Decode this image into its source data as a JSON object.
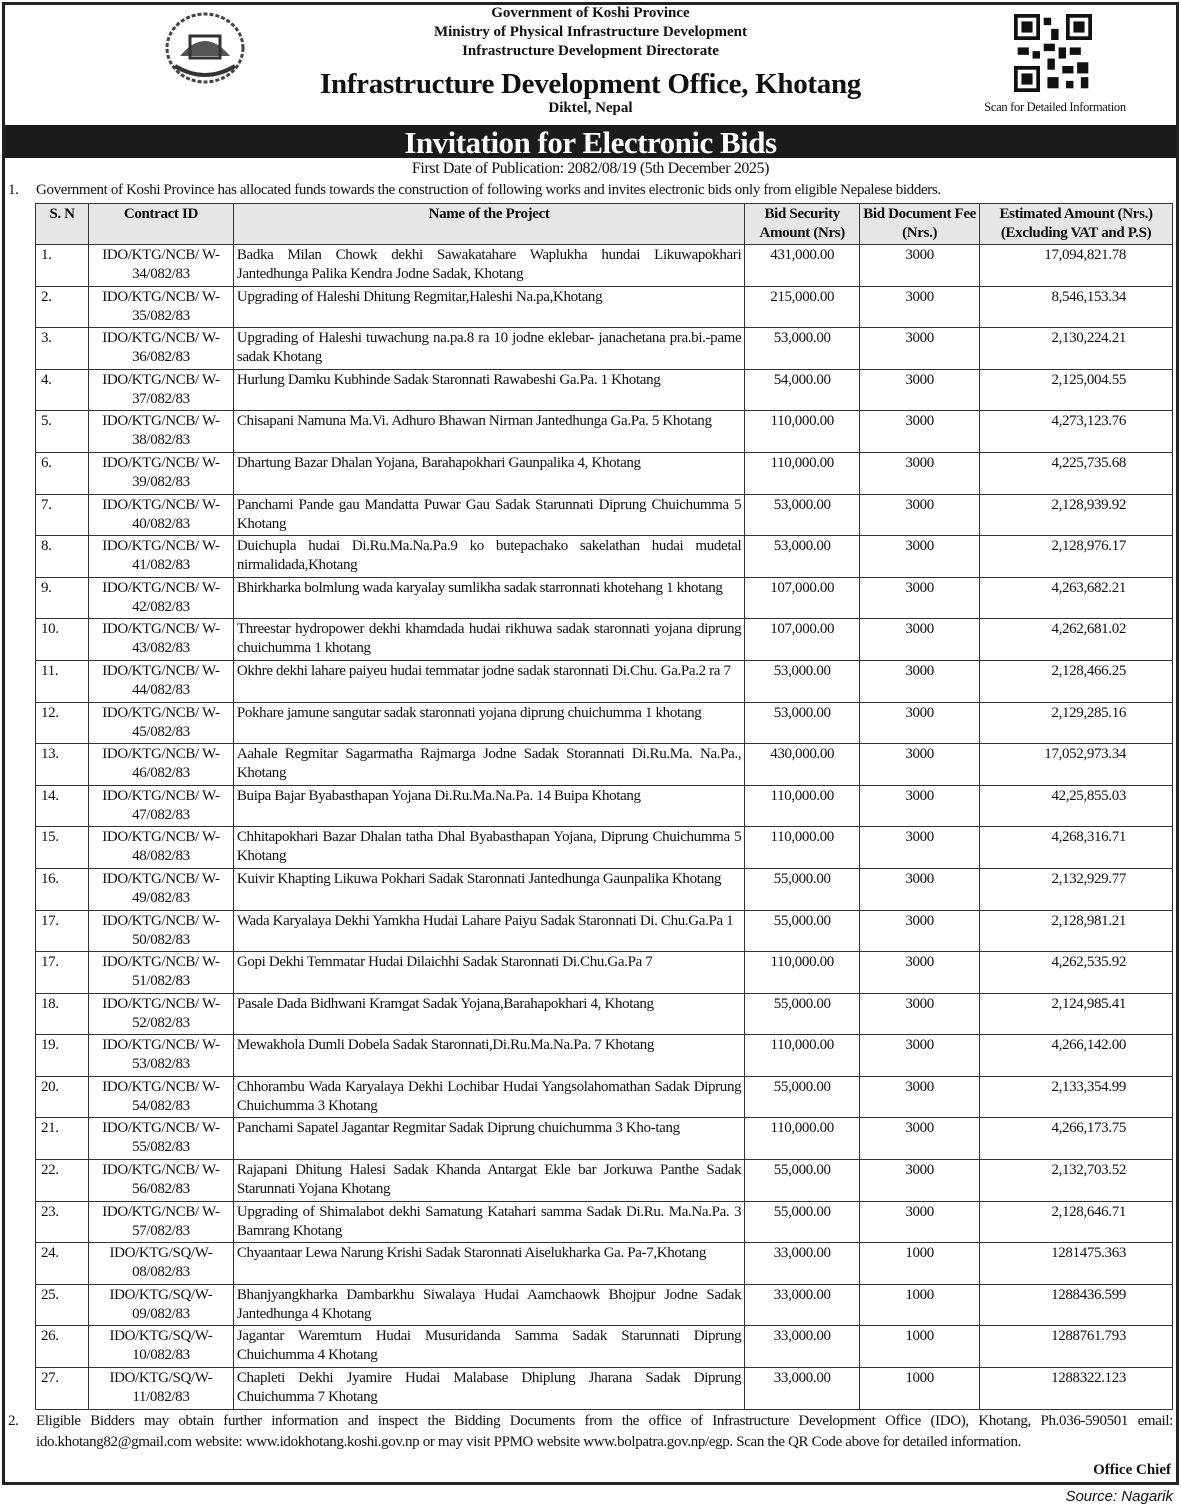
{
  "header": {
    "line1": "Government of Koshi Province",
    "line2": "Ministry of Physical Infrastructure Development",
    "line3": "Infrastructure Development Directorate",
    "office": "Infrastructure Development Office, Khotang",
    "location": "Diktel, Nepal",
    "qr_caption": "Scan for Detailed Information"
  },
  "title": "Invitation for Electronic Bids",
  "publication": "First Date of Publication: 2082/08/19 (5th December 2025)",
  "para1": {
    "num": "1.",
    "text": "Government of Koshi Province has allocated funds towards the construction of following works and invites electronic bids only from eligible Nepalese bidders."
  },
  "table": {
    "columns": [
      "S. N",
      "Contract ID",
      "Name of the Project",
      "Bid Security Amount (Nrs)",
      "Bid Document Fee (Nrs.)",
      "Estimated Amount (Nrs.) (Excluding VAT and P.S)"
    ],
    "rows": [
      [
        "1.",
        "IDO/KTG/NCB/ W-34/082/83",
        "Badka Milan Chowk dekhi Sawakatahare Waplukha hundai Likuwapokhari Jantedhunga Palika Kendra Jodne Sadak, Khotang",
        "431,000.00",
        "3000",
        "17,094,821.78"
      ],
      [
        "2.",
        "IDO/KTG/NCB/ W-35/082/83",
        "Upgrading of Haleshi Dhitung Regmitar,Haleshi Na.pa,Khotang",
        "215,000.00",
        "3000",
        "8,546,153.34"
      ],
      [
        "3.",
        "IDO/KTG/NCB/ W-36/082/83",
        "Upgrading of Haleshi tuwachung na.pa.8 ra 10 jodne eklebar- janachetana pra.bi.-pame sadak Khotang",
        "53,000.00",
        "3000",
        "2,130,224.21"
      ],
      [
        "4.",
        "IDO/KTG/NCB/ W-37/082/83",
        "Hurlung Damku Kubhinde Sadak Staronnati Rawabeshi Ga.Pa. 1 Khotang",
        "54,000.00",
        "3000",
        "2,125,004.55"
      ],
      [
        "5.",
        "IDO/KTG/NCB/ W-38/082/83",
        "Chisapani Namuna Ma.Vi. Adhuro Bhawan Nirman Jantedhunga Ga.Pa. 5 Khotang",
        "110,000.00",
        "3000",
        "4,273,123.76"
      ],
      [
        "6.",
        "IDO/KTG/NCB/ W-39/082/83",
        "Dhartung Bazar Dhalan Yojana, Barahapokhari Gaunpalika 4, Khotang",
        "110,000.00",
        "3000",
        "4,225,735.68"
      ],
      [
        "7.",
        "IDO/KTG/NCB/ W-40/082/83",
        "Panchami Pande gau Mandatta Puwar Gau Sadak Starunnati Diprung Chuichumma 5 Khotang",
        "53,000.00",
        "3000",
        "2,128,939.92"
      ],
      [
        "8.",
        "IDO/KTG/NCB/ W-41/082/83",
        "Duichupla hudai Di.Ru.Ma.Na.Pa.9 ko butepachako sakelathan hudai mudetal nirmalidada,Khotang",
        "53,000.00",
        "3000",
        "2,128,976.17"
      ],
      [
        "9.",
        "IDO/KTG/NCB/ W-42/082/83",
        "Bhirkharka bolmlung wada karyalay sumlikha sadak starronnati khotehang 1 khotang",
        "107,000.00",
        "3000",
        "4,263,682.21"
      ],
      [
        "10.",
        "IDO/KTG/NCB/ W-43/082/83",
        "Threestar hydropower dekhi khamdada hudai rikhuwa sadak staronnati yojana diprung chuichumma 1 khotang",
        "107,000.00",
        "3000",
        "4,262,681.02"
      ],
      [
        "11.",
        "IDO/KTG/NCB/ W-44/082/83",
        "Okhre dekhi lahare paiyeu hudai temmatar jodne sadak staronnati Di.Chu. Ga.Pa.2 ra 7",
        "53,000.00",
        "3000",
        "2,128,466.25"
      ],
      [
        "12.",
        "IDO/KTG/NCB/ W-45/082/83",
        "Pokhare jamune sangutar sadak staronnati yojana diprung chuichumma 1 khotang",
        "53,000.00",
        "3000",
        "2,129,285.16"
      ],
      [
        "13.",
        "IDO/KTG/NCB/ W-46/082/83",
        "Aahale Regmitar Sagarmatha Rajmarga Jodne Sadak Storannati Di.Ru.Ma. Na.Pa., Khotang",
        "430,000.00",
        "3000",
        "17,052,973.34"
      ],
      [
        "14.",
        "IDO/KTG/NCB/ W-47/082/83",
        "Buipa Bajar Byabasthapan Yojana Di.Ru.Ma.Na.Pa. 14 Buipa Khotang",
        "110,000.00",
        "3000",
        "42,25,855.03"
      ],
      [
        "15.",
        "IDO/KTG/NCB/ W-48/082/83",
        "Chhitapokhari Bazar Dhalan tatha Dhal Byabasthapan Yojana, Diprung Chuichumma 5 Khotang",
        "110,000.00",
        "3000",
        "4,268,316.71"
      ],
      [
        "16.",
        "IDO/KTG/NCB/ W-49/082/83",
        "Kuivir Khapting Likuwa Pokhari Sadak Staronnati Jantedhunga Gaunpalika Khotang",
        "55,000.00",
        "3000",
        "2,132,929.77"
      ],
      [
        "17.",
        "IDO/KTG/NCB/ W-50/082/83",
        "Wada Karyalaya Dekhi Yamkha Hudai Lahare Paiyu Sadak Staronnati Di. Chu.Ga.Pa 1",
        "55,000.00",
        "3000",
        "2,128,981.21"
      ],
      [
        "17.",
        "IDO/KTG/NCB/ W-51/082/83",
        "Gopi Dekhi Temmatar Hudai Dilaichhi Sadak Staronnati Di.Chu.Ga.Pa 7",
        "110,000.00",
        "3000",
        "4,262,535.92"
      ],
      [
        "18.",
        "IDO/KTG/NCB/ W-52/082/83",
        "Pasale Dada Bidhwani Kramgat Sadak Yojana,Barahapokhari 4, Khotang",
        "55,000.00",
        "3000",
        "2,124,985.41"
      ],
      [
        "19.",
        "IDO/KTG/NCB/ W-53/082/83",
        "Mewakhola Dumli Dobela Sadak Staronnati,Di.Ru.Ma.Na.Pa. 7 Khotang",
        "110,000.00",
        "3000",
        "4,266,142.00"
      ],
      [
        "20.",
        "IDO/KTG/NCB/ W-54/082/83",
        "Chhorambu Wada Karyalaya Dekhi Lochibar Hudai Yangsolahomathan Sadak Diprung Chuichumma 3 Khotang",
        "55,000.00",
        "3000",
        "2,133,354.99"
      ],
      [
        "21.",
        "IDO/KTG/NCB/ W-55/082/83",
        "Panchami Sapatel Jagantar Regmitar Sadak Diprung chuichumma 3 Kho-tang",
        "110,000.00",
        "3000",
        "4,266,173.75"
      ],
      [
        "22.",
        "IDO/KTG/NCB/ W-56/082/83",
        "Rajapani Dhitung Halesi Sadak Khanda Antargat Ekle bar Jorkuwa Panthe Sadak Starunnati Yojana Khotang",
        "55,000.00",
        "3000",
        "2,132,703.52"
      ],
      [
        "23.",
        "IDO/KTG/NCB/ W-57/082/83",
        "Upgrading of Shimalabot dekhi Samatung Katahari samma Sadak Di.Ru. Ma.Na.Pa. 3 Bamrang Khotang",
        "55,000.00",
        "3000",
        "2,128,646.71"
      ],
      [
        "24.",
        "IDO/KTG/SQ/W- 08/082/83",
        "Chyaantaar Lewa Narung Krishi Sadak Staronnati Aiselukharka Ga. Pa-7,Khotang",
        "33,000.00",
        "1000",
        "1281475.363"
      ],
      [
        "25.",
        "IDO/KTG/SQ/W- 09/082/83",
        "Bhanjyangkharka Dambarkhu Siwalaya Hudai Aamchaowk Bhojpur Jodne Sadak Jantedhunga 4 Khotang",
        "33,000.00",
        "1000",
        "1288436.599"
      ],
      [
        "26.",
        "IDO/KTG/SQ/W- 10/082/83",
        "Jagantar Waremtum Hudai Musuridanda Samma Sadak Starunnati Diprung Chuichumma 4 Khotang",
        "33,000.00",
        "1000",
        "1288761.793"
      ],
      [
        "27.",
        "IDO/KTG/SQ/W- 11/082/83",
        "Chapleti Dekhi Jyamire Hudai Malabase Dhiplung Jharana Sadak Diprung Chuichumma 7 Khotang",
        "33,000.00",
        "1000",
        "1288322.123"
      ]
    ]
  },
  "para2": {
    "num": "2.",
    "text": "Eligible Bidders may obtain further information and inspect the Bidding Documents from the office of Infrastructure Development Office (IDO), Khotang, Ph.036-590501 email: ido.khotang82@gmail.com website: www.idokhotang.koshi.gov.np or may visit PPMO website www.bolpatra.gov.np/egp. Scan the QR Code above for detailed information."
  },
  "signature": "Office Chief",
  "source": "Source: Nagarik"
}
